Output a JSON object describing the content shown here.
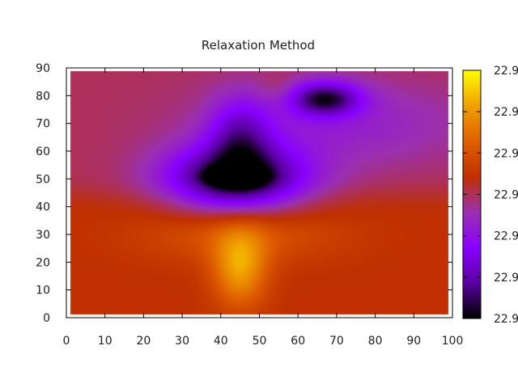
{
  "chart_data": {
    "type": "heatmap",
    "title": "Relaxation Method",
    "xlabel": "",
    "ylabel": "",
    "xlim": [
      0,
      100
    ],
    "ylim": [
      0,
      90
    ],
    "x_ticks": [
      0,
      10,
      20,
      30,
      40,
      50,
      60,
      70,
      80,
      90,
      100
    ],
    "y_ticks": [
      0,
      10,
      20,
      30,
      40,
      50,
      60,
      70,
      80,
      90
    ],
    "colorbar_tick_labels": [
      "22.9",
      "22.9",
      "22.9",
      "22.9",
      "22.9",
      "22.9",
      "22.9"
    ],
    "colormap": [
      "#000000",
      "#5a00a0",
      "#8a00ff",
      "#9a30b0",
      "#c03000",
      "#e06000",
      "#f0a000",
      "#ffff00"
    ],
    "background_level": 0.57,
    "features": [
      {
        "kind": "cold",
        "x": 44,
        "y": 50,
        "rx": 18,
        "ry": 12,
        "depth": 0.5
      },
      {
        "kind": "cold",
        "x": 44,
        "y": 51,
        "rx": 6,
        "ry": 3,
        "depth": 0.55
      },
      {
        "kind": "cold",
        "x": 45,
        "y": 65,
        "rx": 8,
        "ry": 14,
        "depth": 0.25
      },
      {
        "kind": "cold",
        "x": 67,
        "y": 79,
        "rx": 9,
        "ry": 6,
        "depth": 0.4
      },
      {
        "kind": "cold",
        "x": 70,
        "y": 70,
        "rx": 35,
        "ry": 16,
        "depth": 0.12
      },
      {
        "kind": "warm",
        "x": 45,
        "y": 18,
        "rx": 7,
        "ry": 14,
        "depth": 0.28
      },
      {
        "kind": "warm",
        "x": 45,
        "y": 30,
        "rx": 25,
        "ry": 10,
        "depth": 0.12
      },
      {
        "kind": "warm",
        "x": 55,
        "y": 82,
        "rx": 5,
        "ry": 6,
        "depth": 0.05
      }
    ]
  }
}
